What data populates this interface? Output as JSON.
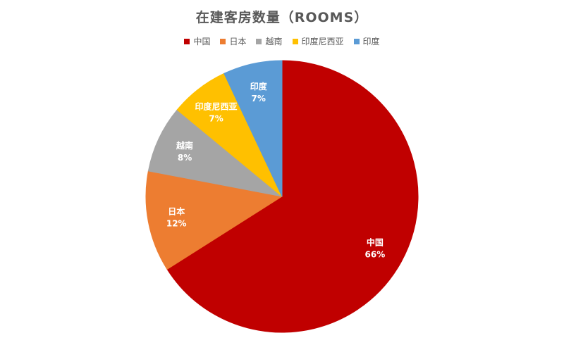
{
  "chart_data": {
    "type": "pie",
    "title": "在建客房数量（ROOMS）",
    "legend_position": "top",
    "start_angle_deg": 0,
    "slices": [
      {
        "name": "中国",
        "value": 66,
        "label": "66%",
        "color": "#C00000"
      },
      {
        "name": "日本",
        "value": 12,
        "label": "12%",
        "color": "#ED7D31"
      },
      {
        "name": "越南",
        "value": 8,
        "label": "8%",
        "color": "#A5A5A5"
      },
      {
        "name": "印度尼西亚",
        "value": 7,
        "label": "7%",
        "color": "#FFC000"
      },
      {
        "name": "印度",
        "value": 7,
        "label": "7%",
        "color": "#5B9BD5"
      }
    ]
  }
}
